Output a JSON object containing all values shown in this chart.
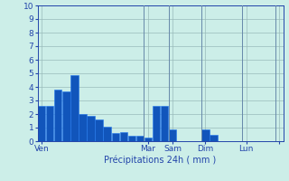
{
  "bar_values": [
    2.6,
    2.6,
    3.8,
    3.7,
    4.9,
    2.0,
    1.9,
    1.6,
    1.1,
    0.6,
    0.7,
    0.4,
    0.4,
    0.3,
    2.6,
    2.6,
    0.85,
    0.0,
    0.0,
    0.0,
    0.85,
    0.5,
    0.0,
    0.0,
    0.0,
    0.0,
    0.0,
    0.0,
    0.0,
    0.0
  ],
  "bar_color": "#1155bb",
  "bar_edge_color": "#2277ee",
  "background_color": "#cceee8",
  "grid_color": "#99bbbb",
  "axis_color": "#2244aa",
  "xlabel": "Précipitations 24h ( mm )",
  "ylim": [
    0,
    10
  ],
  "yticks": [
    0,
    1,
    2,
    3,
    4,
    5,
    6,
    7,
    8,
    9,
    10
  ],
  "xtick_positions": [
    0,
    13,
    16,
    20,
    25,
    29
  ],
  "xtick_labels": [
    "Ven",
    "Mar",
    "Sam",
    "Dim",
    "Lun",
    ""
  ],
  "vline_positions": [
    13,
    16,
    20,
    25,
    29
  ],
  "label_fontsize": 7,
  "tick_fontsize": 6.5
}
